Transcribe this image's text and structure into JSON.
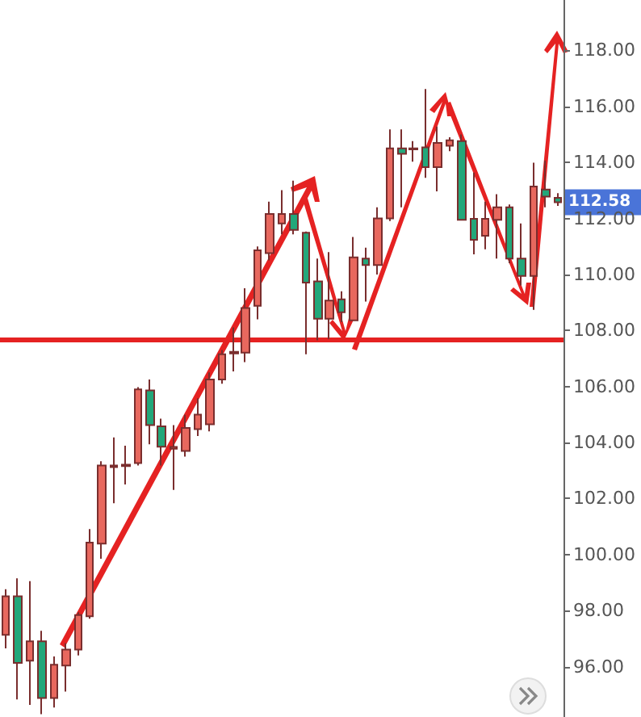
{
  "chart_data": {
    "type": "candlestick",
    "categories": [
      null,
      null,
      null,
      null,
      null,
      null,
      null,
      null,
      null,
      null,
      null,
      null,
      null,
      null,
      null,
      null,
      null,
      null,
      null,
      null,
      null,
      null,
      null,
      null,
      null,
      null,
      null,
      null,
      null,
      null,
      null,
      null,
      null,
      null,
      null,
      null,
      null,
      null,
      null,
      null,
      null,
      null,
      null,
      null,
      null,
      null,
      null
    ],
    "ohlc": [
      [
        97.13,
        98.76,
        96.65,
        98.51
      ],
      [
        98.51,
        99.15,
        94.83,
        96.13
      ],
      [
        96.21,
        99.05,
        94.63,
        96.9
      ],
      [
        96.9,
        97.28,
        94.3,
        94.88
      ],
      [
        94.88,
        96.36,
        94.54,
        96.07
      ],
      [
        96.04,
        96.84,
        95.11,
        96.61
      ],
      [
        96.61,
        97.94,
        96.4,
        97.84
      ],
      [
        97.8,
        100.91,
        97.71,
        100.43
      ],
      [
        100.39,
        103.33,
        99.85,
        103.18
      ],
      [
        103.12,
        104.18,
        101.83,
        103.18
      ],
      [
        103.16,
        103.89,
        102.5,
        103.21
      ],
      [
        103.27,
        105.98,
        103.18,
        105.9
      ],
      [
        105.86,
        106.25,
        103.94,
        104.62
      ],
      [
        104.58,
        104.85,
        103.18,
        103.85
      ],
      [
        103.78,
        104.62,
        102.31,
        103.84
      ],
      [
        103.7,
        105.0,
        103.5,
        104.52
      ],
      [
        104.48,
        105.58,
        104.23,
        105.0
      ],
      [
        104.65,
        106.5,
        104.4,
        106.25
      ],
      [
        106.25,
        107.3,
        106.1,
        107.15
      ],
      [
        107.18,
        108.11,
        106.54,
        107.24
      ],
      [
        107.21,
        109.51,
        106.87,
        108.8
      ],
      [
        108.88,
        111.0,
        108.4,
        110.86
      ],
      [
        110.76,
        112.6,
        110.5,
        112.16
      ],
      [
        111.82,
        113.01,
        111.43,
        112.16
      ],
      [
        112.16,
        113.35,
        111.43,
        111.59
      ],
      [
        111.49,
        111.53,
        107.15,
        109.71
      ],
      [
        109.75,
        110.57,
        107.65,
        108.42
      ],
      [
        108.42,
        110.8,
        107.69,
        109.07
      ],
      [
        109.11,
        109.4,
        108.3,
        108.65
      ],
      [
        108.36,
        111.34,
        108.36,
        110.61
      ],
      [
        110.57,
        110.96,
        109.03,
        110.34
      ],
      [
        110.34,
        112.4,
        110.0,
        112.0
      ],
      [
        112.0,
        115.18,
        111.91,
        114.5
      ],
      [
        114.5,
        115.18,
        112.4,
        114.31
      ],
      [
        114.47,
        114.76,
        114.03,
        114.5
      ],
      [
        114.54,
        116.62,
        113.45,
        113.83
      ],
      [
        113.83,
        115.28,
        112.97,
        114.7
      ],
      [
        114.6,
        114.9,
        114.4,
        114.79
      ],
      [
        114.76,
        115.0,
        111.95,
        111.95
      ],
      [
        111.99,
        113.64,
        110.72,
        111.24
      ],
      [
        111.38,
        112.6,
        110.9,
        111.99
      ],
      [
        111.95,
        112.87,
        110.57,
        112.4
      ],
      [
        112.4,
        112.5,
        110.4,
        110.57
      ],
      [
        110.57,
        111.82,
        109.61,
        109.95
      ],
      [
        109.95,
        113.99,
        108.74,
        113.14
      ],
      [
        113.03,
        114.07,
        112.4,
        112.78
      ],
      [
        112.74,
        112.9,
        112.45,
        112.58
      ]
    ],
    "colors": [
      "#e8685e",
      "#22a77a",
      "#e8685e",
      "#22a77a",
      "#e8685e",
      "#e8685e",
      "#e8685e",
      "#e8685e",
      "#e8685e",
      "#e8685e",
      "#e8685e",
      "#e8685e",
      "#22a77a",
      "#22a77a",
      "#e8685e",
      "#e8685e",
      "#e8685e",
      "#e8685e",
      "#e8685e",
      "#e8685e",
      "#e8685e",
      "#e8685e",
      "#e8685e",
      "#e8685e",
      "#22a77a",
      "#22a77a",
      "#22a77a",
      "#e8685e",
      "#22a77a",
      "#e8685e",
      "#22a77a",
      "#e8685e",
      "#e8685e",
      "#22a77a",
      "#e8685e",
      "#22a77a",
      "#e8685e",
      "#e8685e",
      "#22a77a",
      "#22a77a",
      "#e8685e",
      "#e8685e",
      "#22a77a",
      "#22a77a",
      "#e8685e",
      "#22a77a",
      "#22a77a"
    ],
    "ylim": [
      94.2,
      119.8
    ],
    "yticks": [
      {
        "value": 96,
        "label": "96.00"
      },
      {
        "value": 98,
        "label": "98.00"
      },
      {
        "value": 100,
        "label": "100.00"
      },
      {
        "value": 102,
        "label": "102.00"
      },
      {
        "value": 104,
        "label": "104.00"
      },
      {
        "value": 106,
        "label": "106.00"
      },
      {
        "value": 108,
        "label": "108.00"
      },
      {
        "value": 110,
        "label": "110.00"
      },
      {
        "value": 112,
        "label": "112.00"
      },
      {
        "value": 114,
        "label": "114.00"
      },
      {
        "value": 116,
        "label": "116.00"
      },
      {
        "value": 118,
        "label": "118.00"
      }
    ],
    "tick_labels": "y",
    "ref_lines": [
      {
        "axis": "y",
        "value": 107.7,
        "color": "#e52222"
      }
    ],
    "annotations": [
      "112.58"
    ],
    "grid": false
  }
}
